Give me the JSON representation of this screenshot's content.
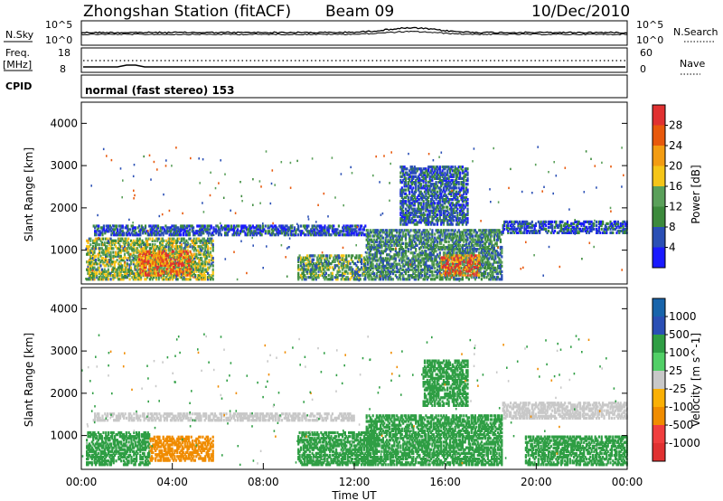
{
  "header": {
    "station": "Zhongshan Station (fitACF)",
    "beam": "Beam 09",
    "date": "10/Dec/2010"
  },
  "nsky_panel": {
    "left_label": "N.Sky",
    "right_label": "N.Search",
    "left_ticks": [
      "10^5",
      "10^0"
    ],
    "right_ticks": [
      "10^5",
      "10^0"
    ]
  },
  "freq_panel": {
    "left_label_1": "Freq.",
    "left_label_2": "[MHz]",
    "right_label": "Nave",
    "left_ticks": [
      "18",
      "8"
    ],
    "right_ticks": [
      "60",
      "0"
    ]
  },
  "cpid_panel": {
    "label": "CPID",
    "mode": "normal (fast stereo) 153"
  },
  "colors": {
    "power_scale": [
      "#1a1aff",
      "#2a4fb5",
      "#3c8a3c",
      "#5aa05a",
      "#f5c518",
      "#f39c12",
      "#e8590c",
      "#e03131"
    ],
    "velocity_scale": [
      "#e03131",
      "#f03e3e",
      "#f08c00",
      "#fab005",
      "#c8c8c8",
      "#51cf66",
      "#2f9e44",
      "#2a4fb5",
      "#1864ab"
    ]
  },
  "chart_data": [
    {
      "type": "heatmap",
      "title": "",
      "ylabel": "Slant Range [km]",
      "xlabel": "",
      "ylim": [
        200,
        4500
      ],
      "yticks": [
        "1000",
        "2000",
        "3000",
        "4000"
      ],
      "colorbar_label": "Power [dB]",
      "colorbar_ticks": [
        "28",
        "24",
        "20",
        "16",
        "12",
        "8",
        "4"
      ],
      "colorbar_range": [
        0,
        32
      ],
      "regions": [
        {
          "t0": 0.2,
          "t1": 5.8,
          "r0": 300,
          "r1": 1300,
          "value": 14
        },
        {
          "t0": 2.5,
          "t1": 4.8,
          "r0": 400,
          "r1": 1000,
          "value": 24
        },
        {
          "t0": 0.5,
          "t1": 12.5,
          "r0": 1350,
          "r1": 1600,
          "value": 6
        },
        {
          "t0": 9.5,
          "t1": 12.5,
          "r0": 300,
          "r1": 900,
          "value": 12
        },
        {
          "t0": 12.5,
          "t1": 18.5,
          "r0": 300,
          "r1": 1500,
          "value": 10
        },
        {
          "t0": 15.8,
          "t1": 17.5,
          "r0": 400,
          "r1": 900,
          "value": 24
        },
        {
          "t0": 18.5,
          "t1": 24.0,
          "r0": 1400,
          "r1": 1700,
          "value": 6
        },
        {
          "t0": 14.0,
          "t1": 17.0,
          "r0": 1600,
          "r1": 3000,
          "value": 7
        }
      ]
    },
    {
      "type": "heatmap",
      "title": "",
      "ylabel": "Slant Range [km]",
      "xlabel": "Time UT",
      "ylim": [
        200,
        4500
      ],
      "yticks": [
        "1000",
        "2000",
        "3000",
        "4000"
      ],
      "xticks": [
        "00:00",
        "04:00",
        "08:00",
        "12:00",
        "16:00",
        "20:00",
        "00:00"
      ],
      "xlim": [
        0,
        24
      ],
      "colorbar_label": "Velocity [m s^-1]",
      "colorbar_ticks": [
        "1000",
        "500",
        "100",
        "25",
        "-25",
        "-100",
        "-500",
        "-1000"
      ],
      "regions": [
        {
          "t0": 0.2,
          "t1": 3.0,
          "r0": 300,
          "r1": 1100,
          "value": 200
        },
        {
          "t0": 3.0,
          "t1": 5.8,
          "r0": 400,
          "r1": 1000,
          "value": -300
        },
        {
          "t0": 0.5,
          "t1": 12.0,
          "r0": 1350,
          "r1": 1550,
          "value": 0
        },
        {
          "t0": 9.5,
          "t1": 13.0,
          "r0": 300,
          "r1": 1100,
          "value": 200
        },
        {
          "t0": 12.5,
          "t1": 18.5,
          "r0": 300,
          "r1": 1500,
          "value": 200
        },
        {
          "t0": 18.5,
          "t1": 24.0,
          "r0": 1400,
          "r1": 1800,
          "value": 0
        },
        {
          "t0": 19.5,
          "t1": 24.0,
          "r0": 300,
          "r1": 1000,
          "value": 200
        },
        {
          "t0": 15.0,
          "t1": 17.0,
          "r0": 1700,
          "r1": 2800,
          "value": 150
        }
      ]
    }
  ]
}
